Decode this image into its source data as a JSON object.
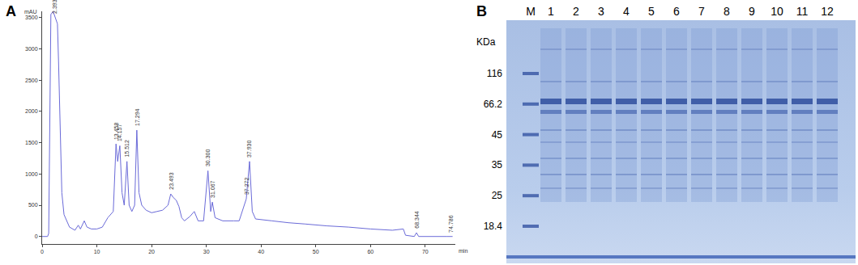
{
  "chart_data": {
    "type": "line",
    "panel_label": "A",
    "xlabel": "min",
    "ylabel": "mAU",
    "x": [
      0,
      1,
      1.2,
      1.6,
      2.0,
      2.4,
      2.8,
      3.0,
      3.3,
      3.6,
      4.0,
      4.5,
      5,
      6,
      6.6,
      7,
      7.7,
      8.2,
      9,
      10,
      11,
      12,
      12.5,
      13,
      13.5,
      13.8,
      14.2,
      14.6,
      15.0,
      15.5,
      15.9,
      16.4,
      16.9,
      17.3,
      17.7,
      18.2,
      19,
      20,
      21,
      22,
      23,
      23.5,
      24,
      24.5,
      25,
      25.5,
      26,
      27,
      27.8,
      28.5,
      29.5,
      30.3,
      30.8,
      31.1,
      31.6,
      33,
      35,
      36,
      37.3,
      37.9,
      38.4,
      39,
      42,
      45,
      48,
      52,
      56,
      60,
      64,
      66,
      66.4,
      68,
      68.4,
      68.8,
      74,
      75
    ],
    "values": [
      0,
      0,
      50,
      3550,
      3600,
      3500,
      3400,
      2800,
      1600,
      700,
      350,
      250,
      150,
      100,
      180,
      120,
      250,
      150,
      120,
      120,
      150,
      300,
      350,
      400,
      1480,
      1200,
      1450,
      700,
      500,
      1200,
      500,
      400,
      500,
      1700,
      700,
      500,
      420,
      380,
      400,
      420,
      500,
      680,
      620,
      580,
      480,
      300,
      250,
      320,
      400,
      250,
      250,
      1050,
      400,
      550,
      300,
      250,
      250,
      250,
      600,
      1200,
      400,
      280,
      250,
      220,
      200,
      170,
      150,
      120,
      100,
      120,
      20,
      0,
      60,
      0,
      0,
      0
    ],
    "color": "#6a6ad8",
    "peaks": [
      {
        "x": 2.393,
        "y": 3500,
        "label": "2.393"
      },
      {
        "x": 13.458,
        "y": 1480,
        "label": "13.458"
      },
      {
        "x": 14.157,
        "y": 1450,
        "label": "14.157"
      },
      {
        "x": 15.512,
        "y": 1200,
        "label": "15.512"
      },
      {
        "x": 17.294,
        "y": 1700,
        "label": "17.294"
      },
      {
        "x": 23.493,
        "y": 680,
        "label": "23.493"
      },
      {
        "x": 30.3,
        "y": 1050,
        "label": "30.300"
      },
      {
        "x": 31.067,
        "y": 550,
        "label": "31.067"
      },
      {
        "x": 37.272,
        "y": 600,
        "label": "37.272"
      },
      {
        "x": 37.93,
        "y": 1200,
        "label": "37.930"
      },
      {
        "x": 68.344,
        "y": 60,
        "label": "68.344"
      },
      {
        "x": 74.786,
        "y": 0,
        "label": "74.786"
      }
    ],
    "xlim": [
      0,
      75.5
    ],
    "xticks": [
      0,
      10,
      20,
      30,
      40,
      50,
      60,
      70
    ],
    "ylim": [
      -120,
      3600
    ],
    "yticks": [
      0,
      500,
      1000,
      1500,
      2000,
      2500,
      3000,
      3500
    ],
    "grid": false
  },
  "gel": {
    "panel_label": "B",
    "unit_label": "KDa",
    "lanes": [
      "M",
      "1",
      "2",
      "3",
      "4",
      "5",
      "6",
      "7",
      "8",
      "9",
      "10",
      "11",
      "12"
    ],
    "markers": [
      116,
      66.2,
      45,
      35,
      25,
      18.4
    ]
  }
}
